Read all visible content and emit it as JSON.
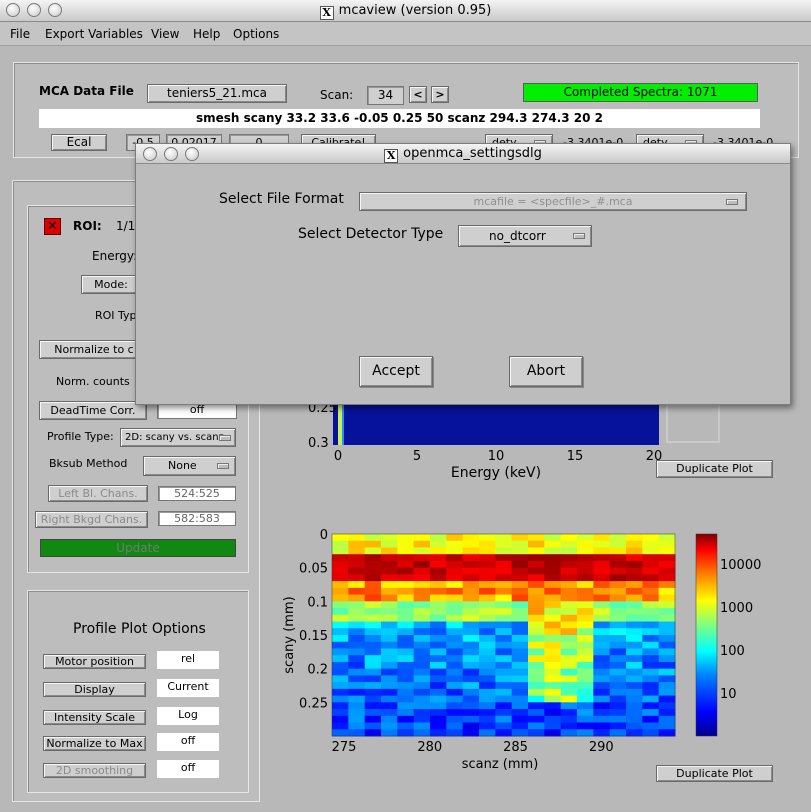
{
  "window": {
    "title": "mcaview (version 0.95)"
  },
  "menu": [
    "File",
    "Export Variables",
    "View",
    "Help",
    "Options"
  ],
  "header": {
    "mca_file_label": "MCA Data File",
    "mca_file_value": "teniers5_21.mca",
    "scan_label": "Scan:",
    "scan_value": "34",
    "prev_label": "<",
    "next_label": ">",
    "status": "Completed Spectra: 1071",
    "command": "smesh  scany 33.2 33.6 -0.05 0.25 50  scanz 294.3 274.3 20  2",
    "ecal_label": "Ecal",
    "ecal_val1": "-0.5",
    "ecal_val2": "0.02017",
    "ecal_val3": "0",
    "calibrate_label": "Calibrate!",
    "dd1": "dety",
    "val1": "-3.3401e-0",
    "dd2": "dety",
    "val2": "-3.3401e-0"
  },
  "roi_panel": {
    "roi_label": "ROI:",
    "roi_index": "1/1",
    "energy_label": "Energy:",
    "mode_label": "Mode:",
    "roi_type_label": "ROI Type",
    "normalize_label": "Normalize to c",
    "norm_counts_label": "Norm. counts",
    "deadtime_label": "DeadTime Corr.",
    "deadtime_value": "off",
    "profile_type_label": "Profile Type:",
    "profile_type_value": "2D: scany vs. scanz",
    "bksub_label": "Bksub Method",
    "bksub_value": "None",
    "left_bl_label": "Left Bl. Chans.",
    "left_bl_value": "524:525",
    "right_bl_label": "Right Bkgd Chans.",
    "right_bl_value": "582:583",
    "update_label": "Update"
  },
  "profile_options": {
    "title": "Profile Plot Options",
    "items": [
      {
        "label": "Motor position",
        "value": "rel"
      },
      {
        "label": "Display",
        "value": "Current"
      },
      {
        "label": "Intensity Scale",
        "value": "Log"
      },
      {
        "label": "Normalize to Max",
        "value": "off"
      },
      {
        "label": "2D smoothing",
        "value": "off"
      }
    ]
  },
  "spectrum_plot": {
    "y_ticks": [
      "0.25",
      "0.3"
    ],
    "duplicate_label": "Duplicate Plot"
  },
  "profile_plot": {
    "duplicate_label": "Duplicate Plot"
  },
  "dialog": {
    "title": "openmca_settingsdlg",
    "file_format_label": "Select File Format",
    "file_format_value": "mcafile = <specfile>_#.mca",
    "detector_label": "Select Detector Type",
    "detector_value": "no_dtcorr",
    "accept_label": "Accept",
    "abort_label": "Abort"
  },
  "colors": {
    "status_green": "#00ee00",
    "update_green": "#118811",
    "roi_red": "#dd0000",
    "colormap": [
      "#00008f",
      "#0000ff",
      "#0080ff",
      "#00ffff",
      "#80ff80",
      "#ffff00",
      "#ff8000",
      "#ff0000",
      "#800000"
    ]
  },
  "chart_data": [
    {
      "type": "heatmap",
      "name": "spectrum-map",
      "xlabel": "Energy (keV)",
      "x_ticks": [
        0,
        5,
        10,
        15,
        20
      ],
      "xlim": [
        0,
        20
      ],
      "y_ticks": [
        0.25,
        0.3
      ],
      "note_values": "dense low-intensity map with bright band near 0 keV"
    },
    {
      "type": "heatmap",
      "name": "profile-2d",
      "xlabel": "scanz (mm)",
      "ylabel": "scany (mm)",
      "xlim": [
        274.3,
        294.3
      ],
      "ylim": [
        0,
        0.3
      ],
      "x_ticks": [
        275,
        280,
        285,
        290
      ],
      "y_ticks": [
        0,
        0.05,
        0.1,
        0.15,
        0.2,
        0.25
      ],
      "colorbar_ticks": [
        10,
        100,
        1000,
        10000
      ],
      "colorbar_scale": "log",
      "colorbar_range": [
        1,
        50000
      ]
    }
  ]
}
